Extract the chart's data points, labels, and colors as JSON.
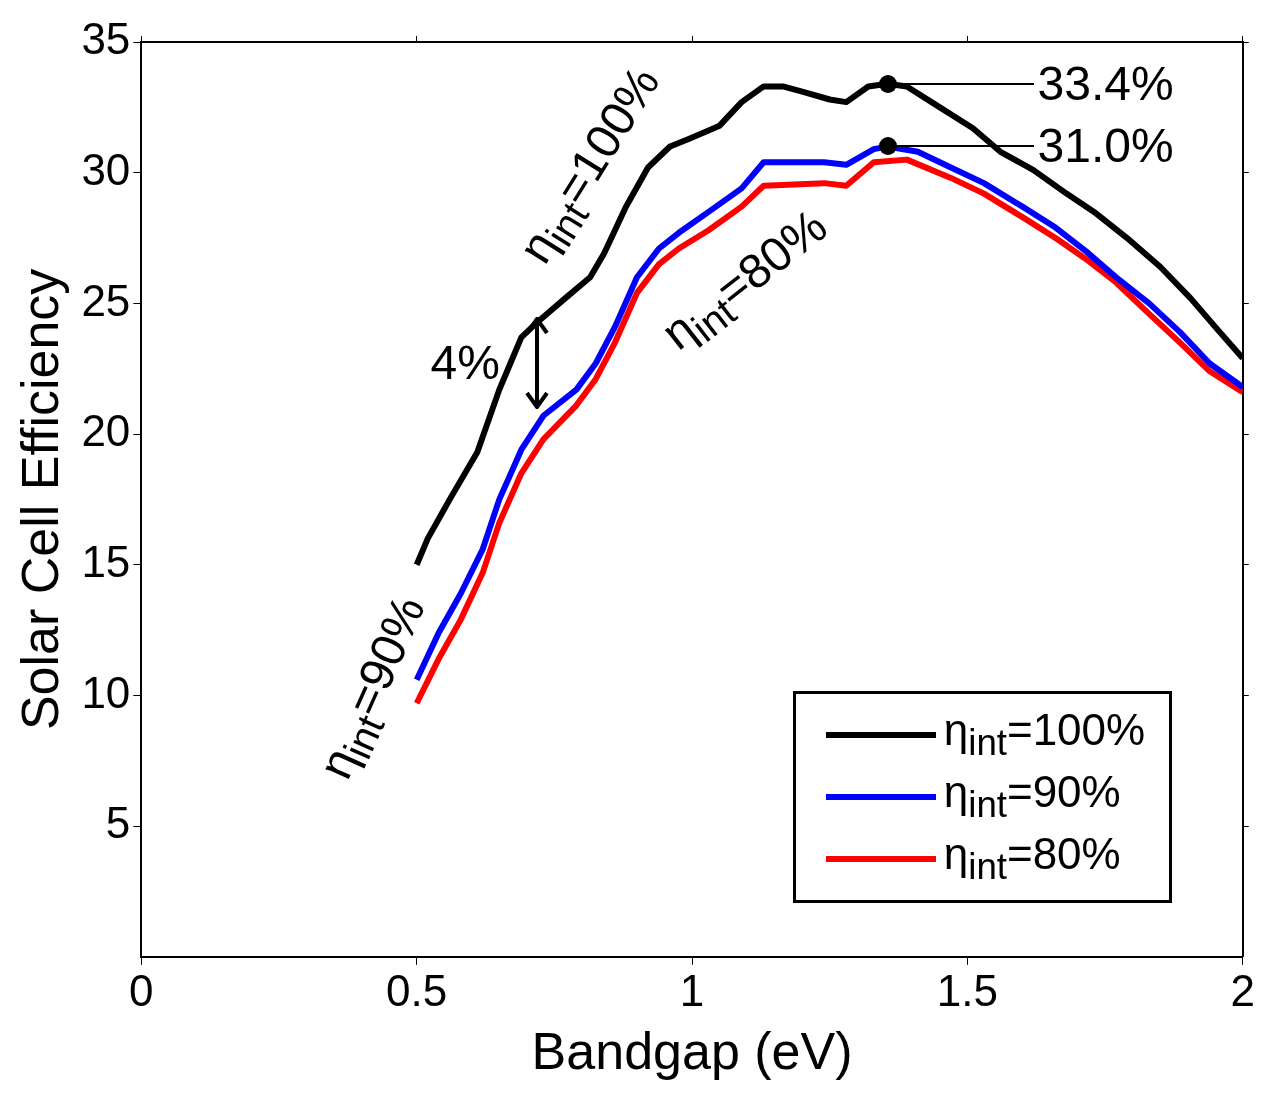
{
  "chart_data": {
    "type": "line",
    "xlabel": "Bandgap (eV)",
    "ylabel": "Solar Cell Efficiency",
    "xlim": [
      0,
      2
    ],
    "xticks": [
      0,
      0.5,
      1,
      1.5,
      2
    ],
    "ylim": [
      0,
      35
    ],
    "yticks": [
      5,
      10,
      15,
      20,
      25,
      30,
      35
    ],
    "grid": false,
    "legend": "bottom right",
    "marker": "none",
    "line_style": "solid",
    "series": [
      {
        "name": "η$_{int}$=100%",
        "color": "#000000",
        "x": [
          0.5,
          0.52,
          0.56,
          0.61,
          0.65,
          0.69,
          0.72,
          0.77,
          0.815,
          0.84,
          0.88,
          0.92,
          0.96,
          0.995,
          1.05,
          1.09,
          1.13,
          1.165,
          1.2,
          1.25,
          1.28,
          1.32,
          1.355,
          1.39,
          1.45,
          1.51,
          1.56,
          1.62,
          1.68,
          1.73,
          1.79,
          1.85,
          1.905,
          1.95,
          2.0
        ],
        "values": [
          15.0,
          16.0,
          17.5,
          19.3,
          21.7,
          23.7,
          24.3,
          25.2,
          26.0,
          26.9,
          28.7,
          30.2,
          31.0,
          31.3,
          31.8,
          32.7,
          33.3,
          33.3,
          33.1,
          32.8,
          32.7,
          33.3,
          33.4,
          33.3,
          32.5,
          31.7,
          30.8,
          30.1,
          29.2,
          28.5,
          27.5,
          26.4,
          25.2,
          24.1,
          22.9
        ]
      },
      {
        "name": "η$_{int}$=90%",
        "color": "#0000ff",
        "x": [
          0.5,
          0.54,
          0.58,
          0.62,
          0.65,
          0.69,
          0.73,
          0.79,
          0.825,
          0.86,
          0.9,
          0.94,
          0.976,
          1.03,
          1.09,
          1.13,
          1.24,
          1.28,
          1.33,
          1.355,
          1.41,
          1.47,
          1.53,
          1.6,
          1.66,
          1.715,
          1.77,
          1.83,
          1.886,
          1.94,
          2.0
        ],
        "values": [
          10.6,
          12.4,
          13.9,
          15.6,
          17.5,
          19.4,
          20.7,
          21.7,
          22.7,
          24.1,
          26.0,
          27.1,
          27.7,
          28.5,
          29.4,
          30.4,
          30.4,
          30.3,
          30.9,
          31.0,
          30.8,
          30.2,
          29.6,
          28.7,
          27.9,
          27.0,
          26.0,
          25.0,
          23.9,
          22.7,
          21.8
        ]
      },
      {
        "name": "η$_{int}$=80%",
        "color": "#ff0000",
        "x": [
          0.5,
          0.54,
          0.58,
          0.62,
          0.65,
          0.69,
          0.73,
          0.79,
          0.825,
          0.86,
          0.9,
          0.94,
          0.976,
          1.03,
          1.09,
          1.13,
          1.24,
          1.28,
          1.33,
          1.39,
          1.47,
          1.53,
          1.6,
          1.66,
          1.715,
          1.77,
          1.83,
          1.886,
          1.94,
          2.0
        ],
        "values": [
          9.7,
          11.4,
          12.9,
          14.7,
          16.6,
          18.5,
          19.8,
          21.1,
          22.1,
          23.5,
          25.4,
          26.5,
          27.1,
          27.8,
          28.7,
          29.5,
          29.6,
          29.5,
          30.4,
          30.5,
          29.8,
          29.2,
          28.3,
          27.5,
          26.7,
          25.8,
          24.6,
          23.5,
          22.4,
          21.6
        ]
      }
    ],
    "annotations": [
      "η$_{int}$=100%",
      "η$_{int}$=90%",
      "η$_{int}$=80%",
      "4%",
      "33.4%",
      "31.0%"
    ]
  }
}
